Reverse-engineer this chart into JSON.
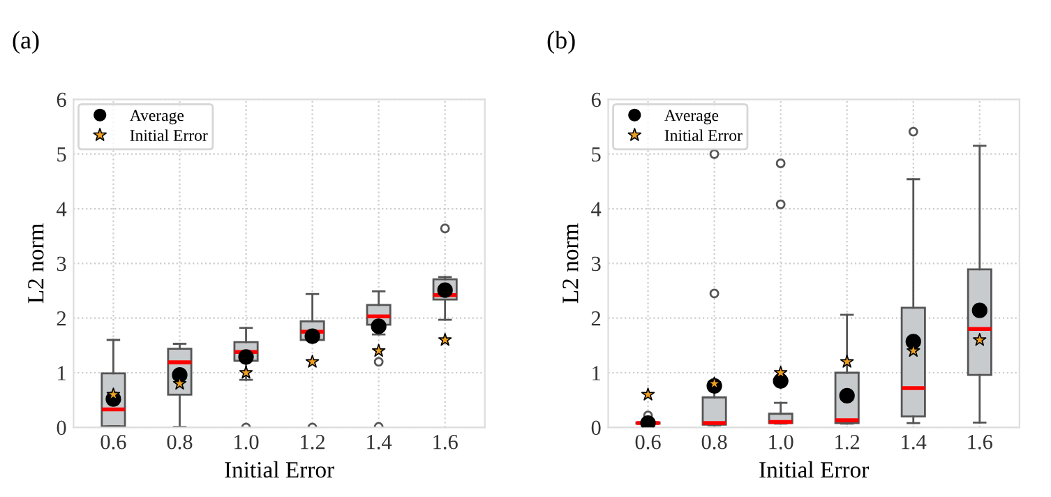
{
  "chart_data": [
    {
      "type": "box",
      "title": "(a)",
      "xlabel": "Initial Error",
      "ylabel": "L2 norm",
      "categories": [
        "0.6",
        "0.8",
        "1.0",
        "1.2",
        "1.4",
        "1.6"
      ],
      "color": "#c8cbcd",
      "boxes": [
        {
          "low": 0.02,
          "q1": 0.02,
          "median": 0.33,
          "q3": 0.99,
          "high": 1.6
        },
        {
          "low": 0.01,
          "q1": 0.6,
          "median": 1.19,
          "q3": 1.44,
          "high": 1.53
        },
        {
          "low": 0.87,
          "q1": 1.22,
          "median": 1.38,
          "q3": 1.56,
          "high": 1.82,
          "outliers": [
            0.0
          ]
        },
        {
          "low": 1.6,
          "q1": 1.6,
          "median": 1.75,
          "q3": 1.94,
          "high": 2.44,
          "outliers": [
            0.0
          ]
        },
        {
          "low": 1.7,
          "q1": 1.88,
          "median": 2.03,
          "q3": 2.24,
          "high": 2.49,
          "outliers": [
            1.2,
            0.01
          ]
        },
        {
          "low": 1.97,
          "q1": 2.34,
          "median": 2.42,
          "q3": 2.71,
          "high": 2.75,
          "outliers": [
            3.64
          ]
        }
      ],
      "series": [
        {
          "name": "Average",
          "type": "scatter",
          "marker": "circle",
          "color": "#000000",
          "x": [
            "0.6",
            "0.8",
            "1.0",
            "1.2",
            "1.4",
            "1.6"
          ],
          "values": [
            0.52,
            0.96,
            1.29,
            1.67,
            1.85,
            2.51
          ]
        },
        {
          "name": "Initial Error",
          "type": "scatter",
          "marker": "star",
          "color": "#f0a020",
          "x": [
            "0.6",
            "0.8",
            "1.0",
            "1.2",
            "1.4",
            "1.6"
          ],
          "values": [
            0.6,
            0.8,
            1.0,
            1.2,
            1.4,
            1.6
          ]
        }
      ],
      "ylim": [
        0,
        6
      ],
      "yticks": [
        0,
        1,
        2,
        3,
        4,
        5,
        6
      ],
      "grid": true,
      "legend": "top left"
    },
    {
      "type": "box",
      "title": "(b)",
      "xlabel": "Initial Error",
      "ylabel": "L2 norm",
      "categories": [
        "0.6",
        "0.8",
        "1.0",
        "1.2",
        "1.4",
        "1.6"
      ],
      "color": "#c8cbcd",
      "boxes": [
        {
          "low": 0.07,
          "q1": 0.07,
          "median": 0.08,
          "q3": 0.09,
          "high": 0.1,
          "outliers": [
            0.22
          ]
        },
        {
          "low": 0.04,
          "q1": 0.05,
          "median": 0.08,
          "q3": 0.55,
          "high": 0.78,
          "outliers": [
            2.45,
            5.0
          ]
        },
        {
          "low": 0.07,
          "q1": 0.08,
          "median": 0.1,
          "q3": 0.25,
          "high": 0.45,
          "outliers": [
            4.08,
            4.83
          ]
        },
        {
          "low": 0.07,
          "q1": 0.08,
          "median": 0.13,
          "q3": 1.0,
          "high": 2.06
        },
        {
          "low": 0.08,
          "q1": 0.2,
          "median": 0.72,
          "q3": 2.19,
          "high": 4.54,
          "outliers": [
            5.41
          ]
        },
        {
          "low": 0.09,
          "q1": 0.96,
          "median": 1.8,
          "q3": 2.89,
          "high": 5.15
        }
      ],
      "series": [
        {
          "name": "Average",
          "type": "scatter",
          "marker": "circle",
          "color": "#000000",
          "x": [
            "0.6",
            "0.8",
            "1.0",
            "1.2",
            "1.4",
            "1.6"
          ],
          "values": [
            0.08,
            0.76,
            0.85,
            0.58,
            1.57,
            2.14
          ]
        },
        {
          "name": "Initial Error",
          "type": "scatter",
          "marker": "star",
          "color": "#f0a020",
          "x": [
            "0.6",
            "0.8",
            "1.0",
            "1.2",
            "1.4",
            "1.6"
          ],
          "values": [
            0.6,
            0.8,
            1.0,
            1.2,
            1.4,
            1.6
          ]
        }
      ],
      "ylim": [
        0,
        6
      ],
      "yticks": [
        0,
        1,
        2,
        3,
        4,
        5,
        6
      ],
      "grid": true,
      "legend": "top left"
    }
  ]
}
